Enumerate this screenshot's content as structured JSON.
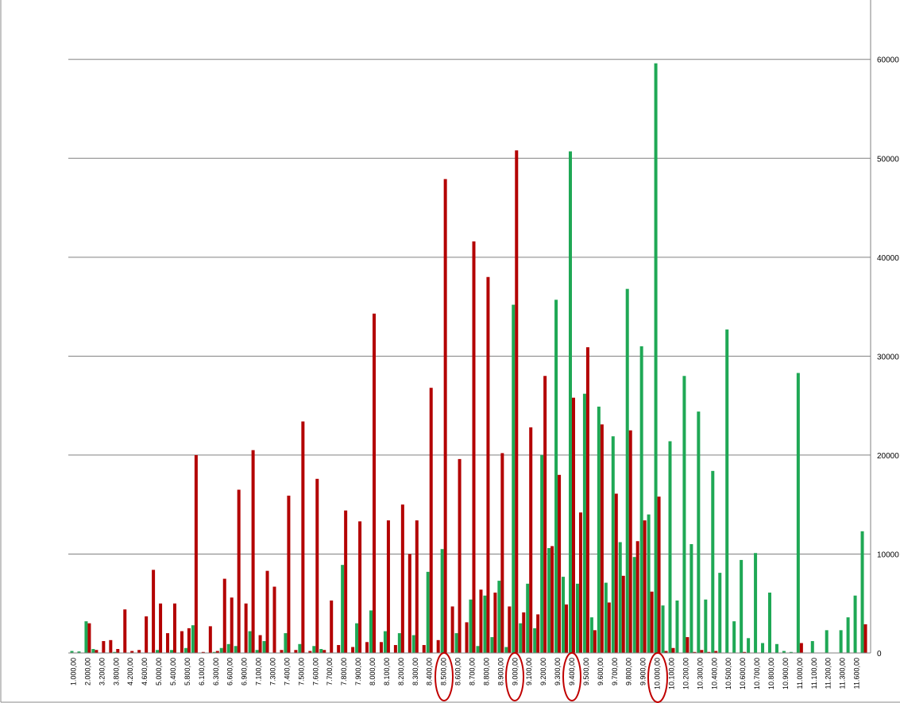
{
  "chart_data": {
    "type": "bar",
    "categories": [
      "1.000,00",
      null,
      "2.000,00",
      null,
      "3.200,00",
      null,
      "3.800,00",
      null,
      "4.200,00",
      null,
      "4.600,00",
      null,
      "5.000,00",
      null,
      "5.400,00",
      null,
      "5.800,00",
      null,
      "6.100,00",
      null,
      "6.300,00",
      null,
      "6.600,00",
      null,
      "6.900,00",
      null,
      "7.100,00",
      null,
      "7.300,00",
      null,
      "7.400,00",
      null,
      "7.500,00",
      null,
      "7.600,00",
      null,
      "7.700,00",
      null,
      "7.800,00",
      null,
      "7.900,00",
      null,
      "8.000,00",
      null,
      "8.100,00",
      null,
      "8.200,00",
      null,
      "8.300,00",
      null,
      "8.400,00",
      null,
      "8.500,00",
      null,
      "8.600,00",
      null,
      "8.700,00",
      null,
      "8.800,00",
      null,
      "8.900,00",
      null,
      "9.000,00",
      null,
      "9.100,00",
      null,
      "9.200,00",
      null,
      "9.300,00",
      null,
      "9.400,00",
      null,
      "9.500,00",
      null,
      "9.600,00",
      null,
      "9.700,00",
      null,
      "9.800,00",
      null,
      "9.900,00",
      null,
      "10.000,00",
      null,
      "10.100,00",
      null,
      "10.200,00",
      null,
      "10.300,00",
      null,
      "10.400,00",
      null,
      "10.500,00",
      null,
      "10.600,00",
      null,
      "10.700,00",
      null,
      "10.800,00",
      null,
      "10.900,00",
      null,
      "11.000,00",
      null,
      "11.100,00",
      null,
      "11.200,00",
      null,
      "11.300,00",
      null,
      "11.600,00",
      null
    ],
    "series": [
      {
        "color": "#1fa855",
        "values": [
          200,
          150,
          3200,
          400,
          0,
          0,
          100,
          0,
          0,
          0,
          0,
          0,
          300,
          0,
          300,
          0,
          500,
          2800,
          0,
          0,
          100,
          500,
          900,
          700,
          0,
          2200,
          300,
          1200,
          0,
          0,
          2000,
          0,
          900,
          0,
          700,
          400,
          0,
          0,
          8900,
          0,
          3000,
          0,
          4300,
          0,
          2200,
          0,
          2000,
          0,
          1800,
          0,
          8200,
          0,
          10500,
          0,
          2000,
          0,
          5400,
          700,
          5800,
          1600,
          7300,
          600,
          35200,
          3000,
          7000,
          2500,
          20000,
          10600,
          35700,
          7700,
          50700,
          7000,
          26200,
          3600,
          24900,
          7100,
          21900,
          11200,
          36800,
          9700,
          31000,
          14000,
          59600,
          4800,
          21400,
          5300,
          28000,
          11000,
          24400,
          5400,
          18400,
          8100,
          32700,
          3200,
          9400,
          1500,
          10100,
          1000,
          6100,
          900,
          200,
          100,
          28300,
          0,
          1200,
          0,
          2300,
          0,
          2300,
          3600,
          5800,
          12300
        ]
      },
      {
        "color": "#b30000",
        "values": [
          0,
          0,
          3000,
          300,
          1200,
          1300,
          400,
          4400,
          200,
          300,
          3700,
          8400,
          5000,
          2000,
          5000,
          2200,
          2500,
          20000,
          100,
          2700,
          200,
          7500,
          5600,
          16500,
          5000,
          20500,
          1800,
          8300,
          6700,
          300,
          15900,
          300,
          23400,
          200,
          17600,
          300,
          5300,
          800,
          14400,
          600,
          13300,
          1100,
          34300,
          1100,
          13400,
          800,
          15000,
          10000,
          13400,
          800,
          26800,
          1300,
          47900,
          4700,
          19600,
          3100,
          41600,
          6400,
          38000,
          6100,
          20200,
          4700,
          50800,
          4100,
          22800,
          3900,
          28000,
          10800,
          18000,
          4900,
          25800,
          14200,
          30900,
          2300,
          23100,
          5100,
          16100,
          7800,
          22500,
          11300,
          13400,
          6200,
          15800,
          200,
          500,
          0,
          1600,
          100,
          300,
          100,
          200,
          0,
          0,
          0,
          100,
          0,
          0,
          0,
          0,
          0,
          0,
          0,
          1000,
          0,
          0,
          0,
          0,
          0,
          0,
          0,
          0,
          2900
        ]
      }
    ],
    "ylim": [
      0,
      66000
    ],
    "yticks": [
      0,
      10000,
      20000,
      30000,
      40000,
      50000,
      60000
    ],
    "grid": true,
    "y_axis_side": "right"
  }
}
